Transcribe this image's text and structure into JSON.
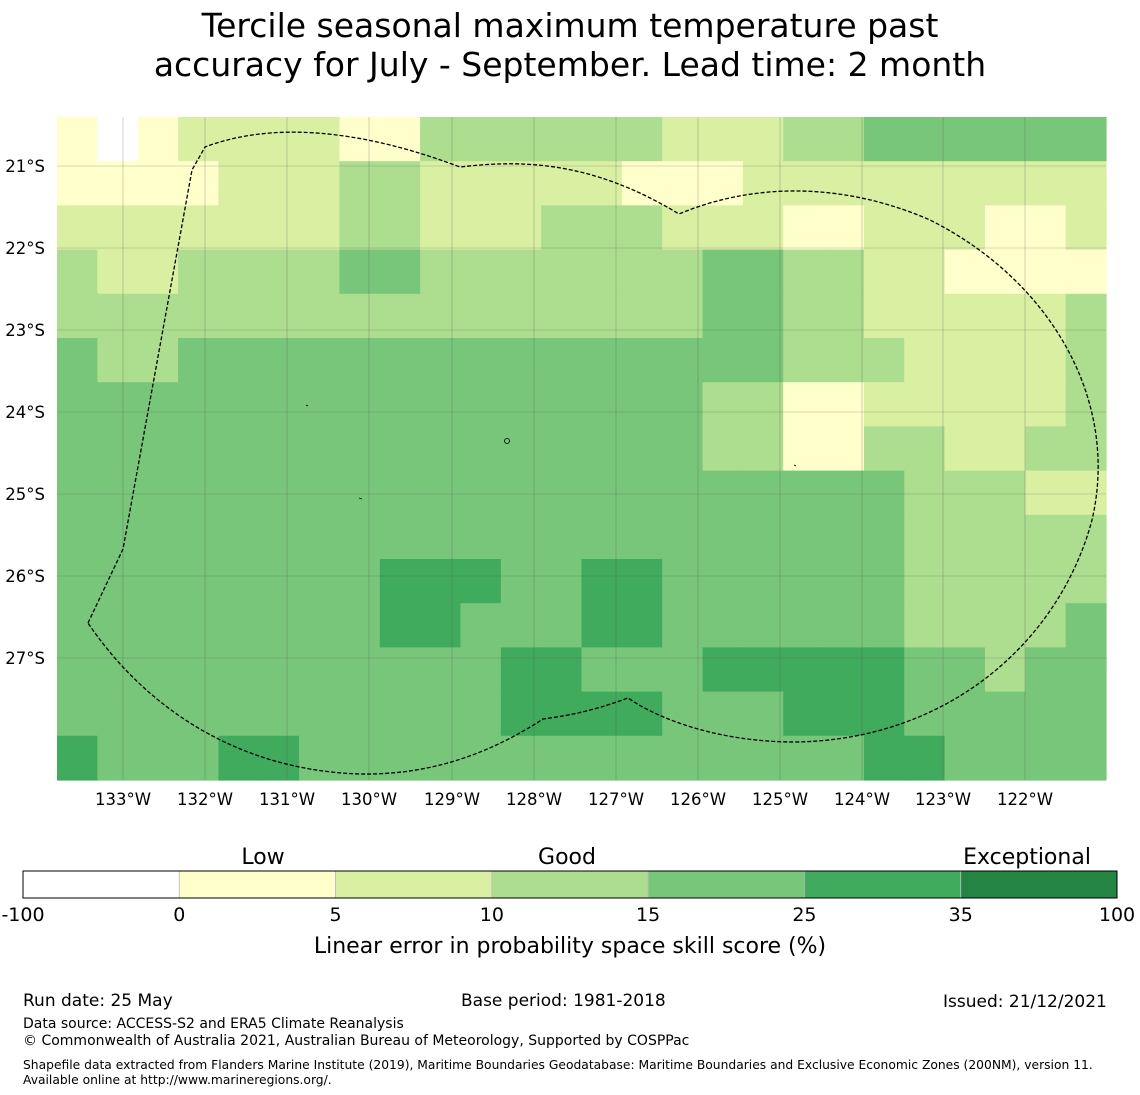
{
  "title": {
    "line1": "Tercile seasonal maximum temperature past",
    "line2": "accuracy for July - September. Lead time: 2 month"
  },
  "map": {
    "lat_labels": [
      "21°S",
      "22°S",
      "23°S",
      "24°S",
      "25°S",
      "26°S",
      "27°S"
    ],
    "lon_labels": [
      "133°W",
      "132°W",
      "131°W",
      "130°W",
      "129°W",
      "128°W",
      "127°W",
      "126°W",
      "125°W",
      "124°W",
      "123°W",
      "122°W"
    ],
    "grid": [
      "1244433444",
      "3334444455",
      "3333444453",
      "5555455555"
    ],
    "cells": [
      [
        1,
        0,
        1,
        2,
        2,
        2,
        2,
        1,
        1,
        3,
        3,
        3,
        3,
        3,
        3,
        2,
        2,
        2,
        3,
        3,
        4,
        4,
        4,
        4,
        4,
        4
      ],
      [
        1,
        1,
        1,
        1,
        2,
        2,
        2,
        3,
        3,
        2,
        2,
        2,
        2,
        2,
        1,
        1,
        1,
        2,
        2,
        2,
        2,
        2,
        2,
        2,
        2,
        2
      ],
      [
        2,
        2,
        2,
        2,
        2,
        2,
        2,
        3,
        3,
        2,
        2,
        2,
        3,
        3,
        3,
        2,
        2,
        2,
        1,
        1,
        2,
        2,
        2,
        1,
        1,
        2
      ],
      [
        3,
        2,
        2,
        3,
        3,
        3,
        3,
        4,
        4,
        3,
        3,
        3,
        3,
        3,
        3,
        3,
        4,
        4,
        3,
        3,
        2,
        2,
        1,
        1,
        1,
        1
      ],
      [
        3,
        3,
        3,
        3,
        3,
        3,
        3,
        3,
        3,
        3,
        3,
        3,
        3,
        3,
        3,
        3,
        4,
        4,
        3,
        3,
        2,
        2,
        2,
        2,
        2,
        3
      ],
      [
        4,
        3,
        3,
        4,
        4,
        4,
        4,
        4,
        4,
        4,
        4,
        4,
        4,
        4,
        4,
        4,
        4,
        4,
        3,
        3,
        3,
        2,
        2,
        2,
        2,
        3
      ],
      [
        4,
        4,
        4,
        4,
        4,
        4,
        4,
        4,
        4,
        4,
        4,
        4,
        4,
        4,
        4,
        4,
        3,
        3,
        1,
        1,
        2,
        2,
        2,
        2,
        2,
        3
      ],
      [
        4,
        4,
        4,
        4,
        4,
        4,
        4,
        4,
        4,
        4,
        4,
        4,
        4,
        4,
        4,
        4,
        3,
        3,
        1,
        1,
        3,
        3,
        2,
        2,
        3,
        3
      ],
      [
        4,
        4,
        4,
        4,
        4,
        4,
        4,
        4,
        4,
        4,
        4,
        4,
        4,
        4,
        4,
        4,
        4,
        4,
        4,
        4,
        4,
        3,
        3,
        3,
        2,
        2
      ],
      [
        4,
        4,
        4,
        4,
        4,
        4,
        4,
        4,
        4,
        4,
        4,
        4,
        4,
        4,
        4,
        4,
        4,
        4,
        4,
        4,
        4,
        3,
        3,
        3,
        3,
        3
      ],
      [
        4,
        4,
        4,
        4,
        4,
        4,
        4,
        4,
        5,
        5,
        5,
        4,
        4,
        5,
        5,
        4,
        4,
        4,
        4,
        4,
        4,
        3,
        3,
        3,
        3,
        3
      ],
      [
        4,
        4,
        4,
        4,
        4,
        4,
        4,
        4,
        5,
        5,
        4,
        4,
        4,
        5,
        5,
        4,
        4,
        4,
        4,
        4,
        4,
        3,
        3,
        3,
        3,
        4
      ],
      [
        4,
        4,
        4,
        4,
        4,
        4,
        4,
        4,
        4,
        4,
        4,
        5,
        5,
        4,
        4,
        4,
        5,
        5,
        5,
        5,
        5,
        4,
        4,
        3,
        4,
        4
      ],
      [
        4,
        4,
        4,
        4,
        4,
        4,
        4,
        4,
        4,
        4,
        4,
        5,
        5,
        5,
        5,
        4,
        4,
        4,
        5,
        5,
        5,
        4,
        4,
        4,
        4,
        4
      ],
      [
        5,
        4,
        4,
        4,
        5,
        5,
        4,
        4,
        4,
        4,
        4,
        4,
        4,
        4,
        4,
        4,
        4,
        4,
        4,
        4,
        5,
        5,
        4,
        4,
        4,
        4
      ]
    ]
  },
  "colorbar": {
    "category_labels": [
      "Low",
      "Good",
      "Exceptional"
    ],
    "tick_labels": [
      "-100",
      "0",
      "5",
      "10",
      "15",
      "25",
      "35",
      "100"
    ],
    "colors": [
      "#ffffff",
      "#ffffcc",
      "#d9f0a3",
      "#addd8e",
      "#78c679",
      "#41ab5d",
      "#238443"
    ],
    "xlabel": "Linear error in probability space skill score (%)"
  },
  "footer": {
    "run_date": "Run date: 25 May",
    "base_period": "Base period: 1981-2018",
    "issued": "Issued: 21/12/2021",
    "data_source": "Data source: ACCESS-S2 and ERA5 Climate Reanalysis",
    "copyright": "© Commonwealth of Australia 2021, Australian Bureau of Meteorology, Supported by COSPPac",
    "shapefile": "Shapefile data extracted from Flanders Marine Institute (2019), Maritime Boundaries Geodatabase: Maritime Boundaries and Exclusive Economic Zones (200NM), version 11. Available online at http://www.marineregions.org/."
  }
}
